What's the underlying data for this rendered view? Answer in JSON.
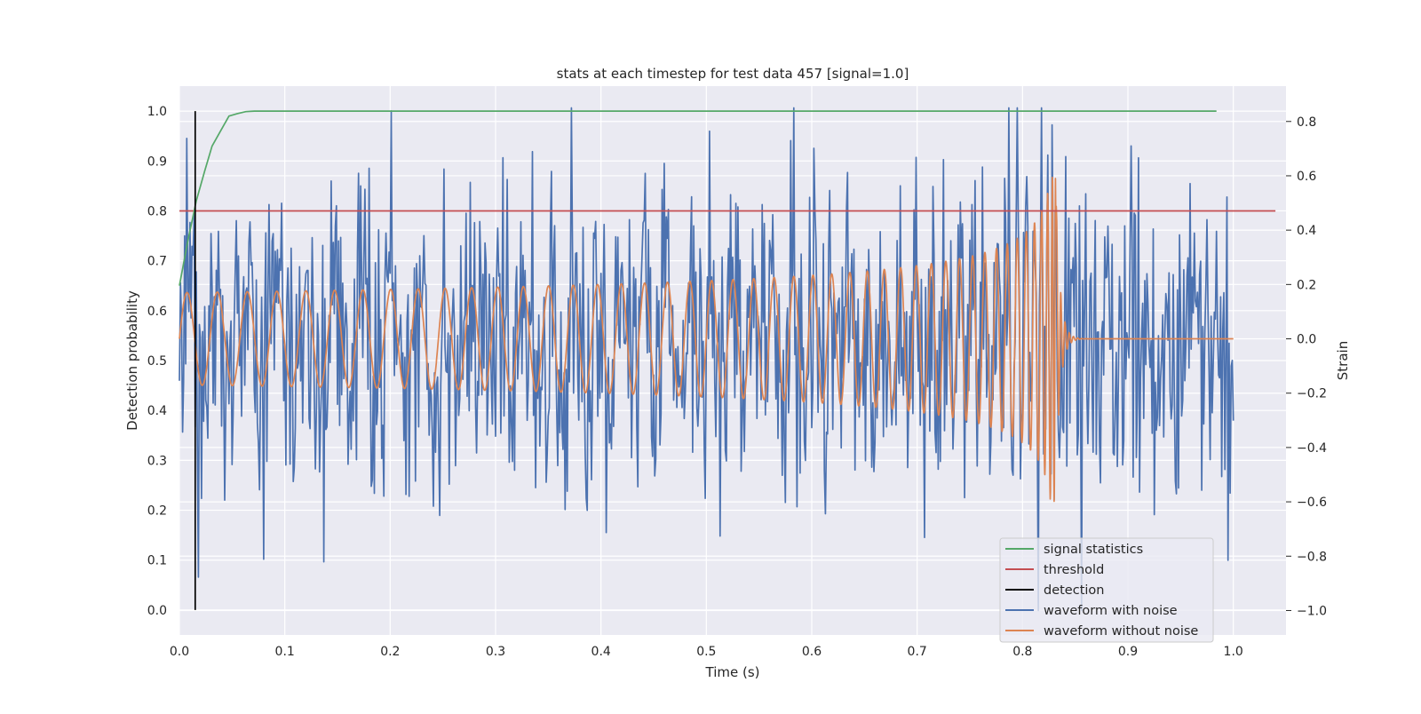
{
  "chart_data": {
    "type": "line",
    "title": "stats at each timestep for test data 457 [signal=1.0]",
    "xlabel": "Time (s)",
    "ylabel": "Detection probability",
    "ylabel_right": "Strain",
    "xlim": [
      0.0,
      1.05
    ],
    "ylim": [
      -0.05,
      1.05
    ],
    "ylim_right": [
      -1.09,
      0.93
    ],
    "x_ticks": [
      "0.0",
      "0.1",
      "0.2",
      "0.3",
      "0.4",
      "0.5",
      "0.6",
      "0.7",
      "0.8",
      "0.9",
      "1.0"
    ],
    "y_ticks": [
      "0.0",
      "0.1",
      "0.2",
      "0.3",
      "0.4",
      "0.5",
      "0.6",
      "0.7",
      "0.8",
      "0.9",
      "1.0"
    ],
    "y_ticks_right": [
      "0.8",
      "0.6",
      "0.4",
      "0.2",
      "0.0",
      "−0.2",
      "−0.4",
      "−0.6",
      "−0.8",
      "−1.0"
    ],
    "grid": true,
    "legend_position": "bottom-right",
    "colors": {
      "background": "#eaeaf2",
      "grid": "#ffffff",
      "signal_statistics": "#55a868",
      "threshold": "#c44e52",
      "detection": "#000000",
      "waveform_noise": "#4c72b0",
      "waveform_clean": "#dd8452"
    },
    "series": [
      {
        "name": "signal statistics",
        "axis": "left",
        "x": [
          0.0,
          0.008,
          0.016,
          0.024,
          0.031,
          0.039,
          0.047,
          0.055,
          0.063,
          0.071,
          0.079,
          0.087,
          0.2,
          0.4,
          0.6,
          0.8,
          0.984
        ],
        "y": [
          0.65,
          0.74,
          0.82,
          0.88,
          0.93,
          0.96,
          0.99,
          0.995,
          0.999,
          1.0,
          1.0,
          1.0,
          1.0,
          1.0,
          1.0,
          1.0,
          1.0
        ]
      },
      {
        "name": "threshold",
        "axis": "left",
        "x": [
          0.0,
          1.04
        ],
        "y": [
          0.8,
          0.8
        ]
      },
      {
        "name": "detection",
        "axis": "left",
        "x": [
          0.015,
          0.015
        ],
        "y": [
          0.0,
          1.0
        ]
      },
      {
        "name": "waveform with noise",
        "axis": "right",
        "x_range": [
          0.0,
          1.0
        ],
        "description": "noisy strain series, approx 1000 samples, std ~0.3, range -1.0 to 0.85"
      },
      {
        "name": "waveform without noise",
        "axis": "right",
        "x_range": [
          0.0,
          1.0
        ],
        "description": "chirp with amplitude ~0.17 rising to ~0.55 near merger at t=0.83, then ringdown to 0"
      }
    ],
    "legend": [
      {
        "label": "signal statistics",
        "color_key": "signal_statistics"
      },
      {
        "label": "threshold",
        "color_key": "threshold"
      },
      {
        "label": "detection",
        "color_key": "detection"
      },
      {
        "label": "waveform with noise",
        "color_key": "waveform_noise"
      },
      {
        "label": "waveform without noise",
        "color_key": "waveform_clean"
      }
    ]
  }
}
